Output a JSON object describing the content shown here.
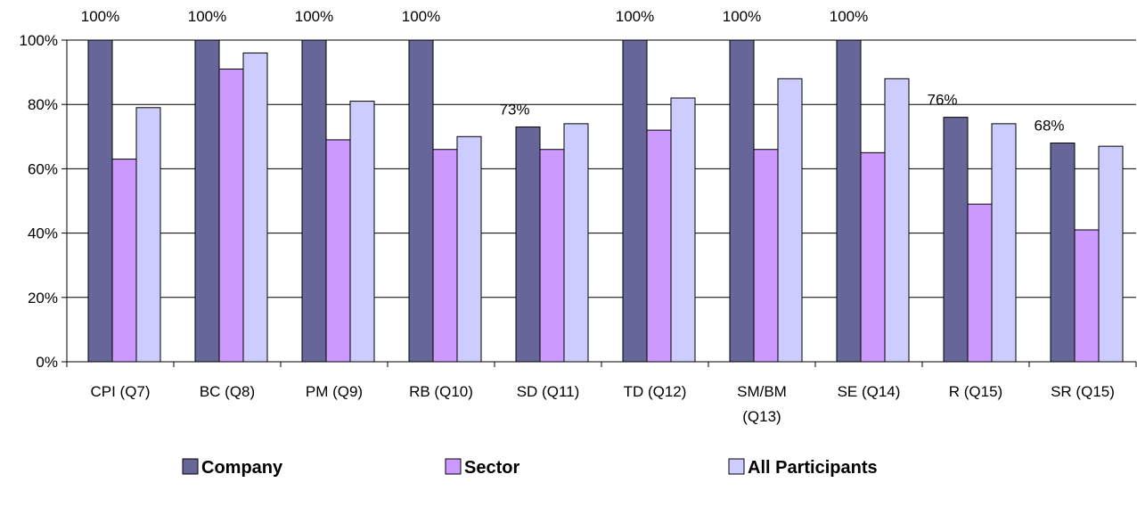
{
  "chart_data": {
    "type": "bar",
    "categories": [
      "CPI (Q7)",
      "BC (Q8)",
      "PM (Q9)",
      "RB (Q10)",
      "SD (Q11)",
      "TD (Q12)",
      "SM/BM (Q13)",
      "SE (Q14)",
      "R (Q15)",
      "SR (Q15)"
    ],
    "series": [
      {
        "name": "Company",
        "color": "#666699",
        "values": [
          100,
          100,
          100,
          100,
          73,
          100,
          100,
          100,
          76,
          68
        ]
      },
      {
        "name": "Sector",
        "color": "#CC99FF",
        "values": [
          63,
          91,
          69,
          66,
          66,
          72,
          66,
          65,
          49,
          41
        ]
      },
      {
        "name": "All Participants",
        "color": "#CCCCFF",
        "values": [
          79,
          96,
          81,
          70,
          74,
          82,
          88,
          88,
          74,
          67
        ]
      }
    ],
    "data_labels": [
      "100%",
      "100%",
      "100%",
      "100%",
      "73%",
      "100%",
      "100%",
      "100%",
      "76%",
      "68%"
    ],
    "y_ticks": [
      "0%",
      "20%",
      "40%",
      "60%",
      "80%",
      "100%"
    ],
    "ylim": [
      0,
      100
    ],
    "grid": true,
    "legend_position": "bottom"
  }
}
